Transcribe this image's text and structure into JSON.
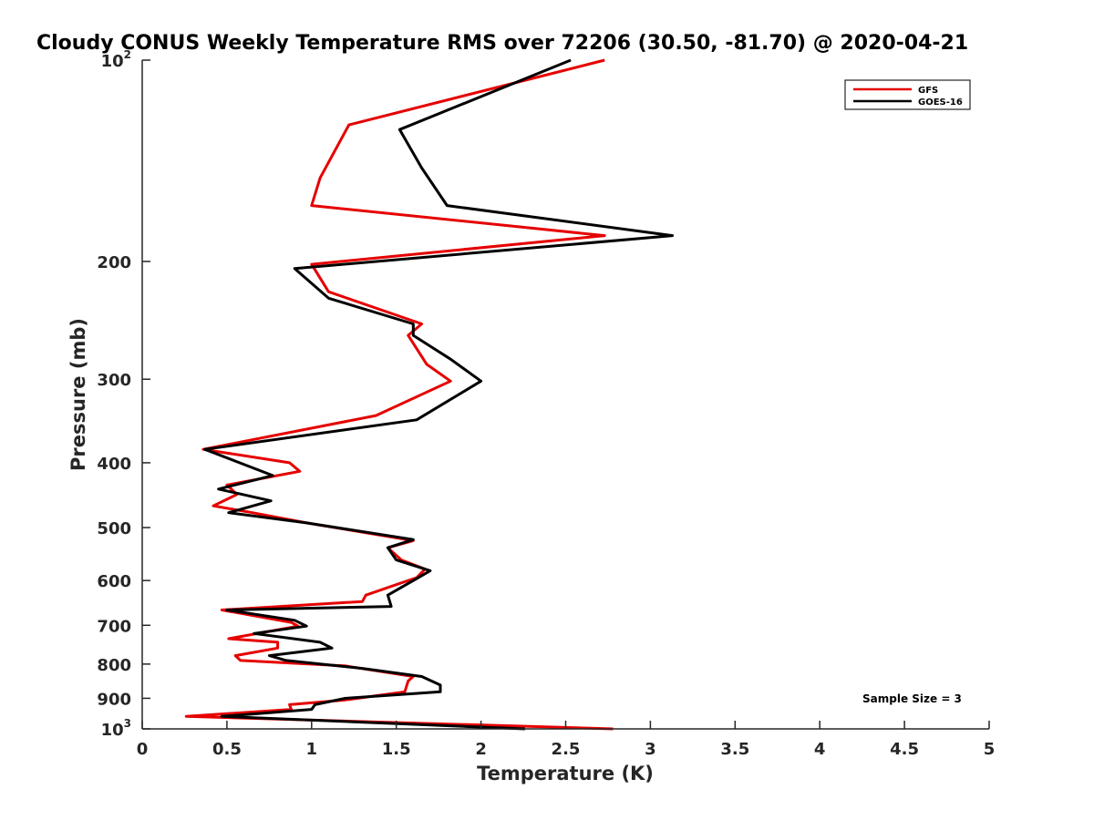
{
  "chart_data": {
    "type": "line",
    "title": "Cloudy CONUS Weekly Temperature RMS over 72206 (30.50, -81.70) @ 2020-04-21",
    "xlabel": "Temperature (K)",
    "ylabel": "Pressure (mb)",
    "xlim": [
      0,
      5
    ],
    "ylim": [
      100,
      1000
    ],
    "y_scale": "log",
    "y_reversed": true,
    "grid": false,
    "legend_position": "top-right",
    "x_ticks": [
      "0",
      "0.5",
      "1",
      "1.5",
      "2",
      "2.5",
      "3",
      "3.5",
      "4",
      "4.5",
      "5"
    ],
    "x_tick_values": [
      0,
      0.5,
      1,
      1.5,
      2,
      2.5,
      3,
      3.5,
      4,
      4.5,
      5
    ],
    "y_ticks": [
      {
        "value": 100,
        "base": "10",
        "exp": "2"
      },
      {
        "value": 200,
        "label": "200"
      },
      {
        "value": 300,
        "label": "300"
      },
      {
        "value": 400,
        "label": "400"
      },
      {
        "value": 500,
        "label": "500"
      },
      {
        "value": 600,
        "label": "600"
      },
      {
        "value": 700,
        "label": "700"
      },
      {
        "value": 800,
        "label": "800"
      },
      {
        "value": 900,
        "label": "900"
      },
      {
        "value": 1000,
        "base": "10",
        "exp": "3"
      }
    ],
    "annotation": "Sample Size = 3",
    "series": [
      {
        "name": "GFS",
        "color": "#e60000",
        "points": [
          [
            2.73,
            100
          ],
          [
            1.22,
            125
          ],
          [
            1.05,
            150
          ],
          [
            1.0,
            165
          ],
          [
            2.73,
            183
          ],
          [
            1.0,
            202
          ],
          [
            1.1,
            222
          ],
          [
            1.65,
            248
          ],
          [
            1.57,
            258
          ],
          [
            1.68,
            285
          ],
          [
            1.82,
            302
          ],
          [
            1.38,
            340
          ],
          [
            0.36,
            382
          ],
          [
            0.87,
            400
          ],
          [
            0.93,
            412
          ],
          [
            0.5,
            432
          ],
          [
            0.56,
            446
          ],
          [
            0.42,
            464
          ],
          [
            0.65,
            475
          ],
          [
            0.97,
            492
          ],
          [
            1.6,
            523
          ],
          [
            1.45,
            536
          ],
          [
            1.53,
            559
          ],
          [
            1.67,
            577
          ],
          [
            1.62,
            594
          ],
          [
            1.32,
            631
          ],
          [
            1.3,
            645
          ],
          [
            0.47,
            664
          ],
          [
            0.88,
            693
          ],
          [
            0.92,
            702
          ],
          [
            0.51,
            733
          ],
          [
            0.8,
            742
          ],
          [
            0.8,
            757
          ],
          [
            0.55,
            777
          ],
          [
            0.58,
            790
          ],
          [
            1.2,
            805
          ],
          [
            1.6,
            835
          ],
          [
            1.57,
            848
          ],
          [
            1.55,
            880
          ],
          [
            1.2,
            905
          ],
          [
            0.87,
            920
          ],
          [
            0.88,
            935
          ],
          [
            0.26,
            958
          ],
          [
            2.78,
            1000
          ]
        ]
      },
      {
        "name": "GOES-16",
        "color": "#000000",
        "points": [
          [
            2.53,
            100
          ],
          [
            1.52,
            127
          ],
          [
            1.65,
            145
          ],
          [
            1.8,
            165
          ],
          [
            3.13,
            183
          ],
          [
            0.9,
            205
          ],
          [
            1.1,
            227
          ],
          [
            1.6,
            248
          ],
          [
            1.6,
            258
          ],
          [
            1.82,
            280
          ],
          [
            2.0,
            302
          ],
          [
            1.62,
            345
          ],
          [
            0.37,
            382
          ],
          [
            0.77,
            418
          ],
          [
            0.45,
            438
          ],
          [
            0.76,
            456
          ],
          [
            0.51,
            475
          ],
          [
            0.97,
            492
          ],
          [
            1.6,
            521
          ],
          [
            1.45,
            536
          ],
          [
            1.5,
            559
          ],
          [
            1.7,
            580
          ],
          [
            1.6,
            600
          ],
          [
            1.45,
            631
          ],
          [
            1.47,
            656
          ],
          [
            0.5,
            664
          ],
          [
            0.9,
            688
          ],
          [
            0.97,
            702
          ],
          [
            0.66,
            720
          ],
          [
            1.05,
            742
          ],
          [
            1.12,
            757
          ],
          [
            0.75,
            777
          ],
          [
            0.85,
            790
          ],
          [
            1.3,
            812
          ],
          [
            1.65,
            835
          ],
          [
            1.76,
            860
          ],
          [
            1.76,
            880
          ],
          [
            1.2,
            900
          ],
          [
            1.02,
            920
          ],
          [
            1.0,
            935
          ],
          [
            0.47,
            958
          ],
          [
            2.26,
            1000
          ]
        ]
      }
    ]
  }
}
